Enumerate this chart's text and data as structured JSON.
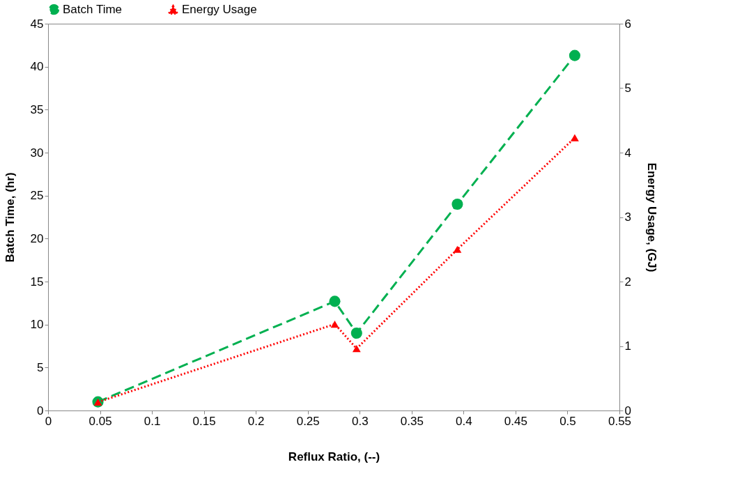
{
  "chart_data": {
    "type": "line",
    "xlabel": "Reflux Ratio, (--)",
    "ylabel": "Batch Time, (hr)",
    "y2label": "Energy Usage, (GJ)",
    "x": [
      0.048,
      0.276,
      0.297,
      0.394,
      0.507
    ],
    "xlim": [
      0,
      0.55
    ],
    "xticks": [
      0,
      0.05,
      0.1,
      0.15,
      0.2,
      0.25,
      0.3,
      0.35,
      0.4,
      0.45,
      0.5,
      0.55
    ],
    "ylim": [
      0,
      45
    ],
    "yticks": [
      0,
      5,
      10,
      15,
      20,
      25,
      30,
      35,
      40,
      45
    ],
    "y2lim": [
      0,
      6
    ],
    "y2ticks": [
      0,
      1,
      2,
      3,
      4,
      5,
      6
    ],
    "grid": false,
    "legend": "top",
    "series": [
      {
        "name": "Batch Time",
        "color": "#00b050",
        "values": [
          1.0,
          12.7,
          9.0,
          24.0,
          41.3
        ],
        "marker": "circle",
        "line_style": "dashed"
      },
      {
        "name": "Energy Usage",
        "color": "#ff0000",
        "values": [
          0.13,
          1.34,
          0.96,
          2.5,
          4.23
        ],
        "marker": "triangle",
        "line_style": "dotted",
        "axis": "y2"
      }
    ]
  }
}
